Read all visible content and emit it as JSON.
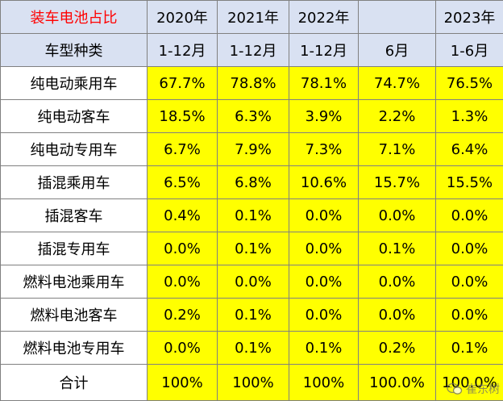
{
  "table": {
    "header_row1": [
      "装车电池占比",
      "2020年",
      "2021年",
      "2022年",
      "",
      "2023年"
    ],
    "header_row2": [
      "车型种类",
      "1-12月",
      "1-12月",
      "1-12月",
      "6月",
      "1-6月"
    ],
    "rows": [
      {
        "label": "纯电动乘用车",
        "values": [
          "67.7%",
          "78.8%",
          "78.1%",
          "74.7%",
          "76.5%"
        ]
      },
      {
        "label": "纯电动客车",
        "values": [
          "18.5%",
          "6.3%",
          "3.9%",
          "2.2%",
          "1.3%"
        ]
      },
      {
        "label": "纯电动专用车",
        "values": [
          "6.7%",
          "7.9%",
          "7.3%",
          "7.1%",
          "6.4%"
        ]
      },
      {
        "label": "插混乘用车",
        "values": [
          "6.5%",
          "6.8%",
          "10.6%",
          "15.7%",
          "15.5%"
        ]
      },
      {
        "label": "插混客车",
        "values": [
          "0.4%",
          "0.1%",
          "0.0%",
          "0.0%",
          "0.0%"
        ]
      },
      {
        "label": "插混专用车",
        "values": [
          "0.0%",
          "0.1%",
          "0.0%",
          "0.1%",
          "0.0%"
        ]
      },
      {
        "label": "燃料电池乘用车",
        "values": [
          "0.0%",
          "0.0%",
          "0.0%",
          "0.0%",
          "0.0%"
        ]
      },
      {
        "label": "燃料电池客车",
        "values": [
          "0.2%",
          "0.1%",
          "0.0%",
          "0.0%",
          "0.0%"
        ]
      },
      {
        "label": "燃料电池专用车",
        "values": [
          "0.0%",
          "0.1%",
          "0.1%",
          "0.2%",
          "0.1%"
        ]
      },
      {
        "label": "合计",
        "values": [
          "100%",
          "100%",
          "100%",
          "100.0%",
          "100.0%"
        ]
      }
    ]
  },
  "watermark": {
    "text": "崔东树",
    "icon": "wechat-icon"
  },
  "colors": {
    "header_bg": "#d9e1f2",
    "value_bg": "#ffff00",
    "title_text": "#ff0000",
    "border": "#808080"
  }
}
